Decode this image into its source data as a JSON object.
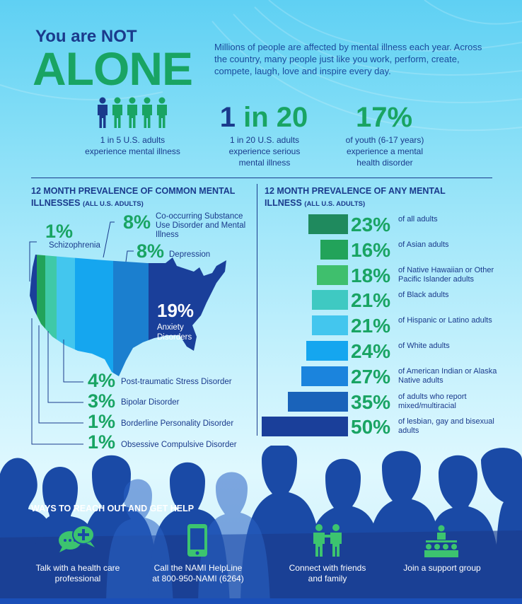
{
  "header": {
    "title_small": "You are NOT",
    "title_big": "ALONE",
    "intro": "Millions of people are affected by mental illness each year. Across the country, many people just like you work, perform, create, compete, laugh, love and inspire every day."
  },
  "stats": [
    {
      "label": "1 in 5 U.S. adults experience mental illness",
      "icon": "people-icon"
    },
    {
      "big_a": "1",
      "big_b": " in 20",
      "label": "1 in 20 U.S. adults experience serious mental illness"
    },
    {
      "big": "17%",
      "label": "of youth (6-17 years) experience a mental health disorder"
    }
  ],
  "left_section": {
    "title": "12 MONTH PREVALENCE OF COMMON MENTAL ILLNESSES",
    "subtitle": "(ALL U.S. ADULTS)",
    "conditions": [
      {
        "pct": "1%",
        "label": "Schizophrenia"
      },
      {
        "pct": "8%",
        "label": "Co-occurring Substance Use Disorder and Mental Illness"
      },
      {
        "pct": "8%",
        "label": "Depression"
      },
      {
        "pct": "19%",
        "label": "Anxiety Disorders"
      },
      {
        "pct": "4%",
        "label": "Post-traumatic Stress Disorder"
      },
      {
        "pct": "3%",
        "label": "Bipolar Disorder"
      },
      {
        "pct": "1%",
        "label": "Borderline Personality Disorder"
      },
      {
        "pct": "1%",
        "label": "Obsessive Compulsive Disorder"
      }
    ]
  },
  "right_section": {
    "title": "12 MONTH PREVALENCE OF ANY MENTAL ILLNESS",
    "subtitle": "(ALL U.S. ADULTS)",
    "rows": [
      {
        "value": 23,
        "pct": "23%",
        "label": "of all adults",
        "color": "#1f8a5e"
      },
      {
        "value": 16,
        "pct": "16%",
        "label": "of Asian adults",
        "color": "#22a35a"
      },
      {
        "value": 18,
        "pct": "18%",
        "label": "of Native Hawaiian or Other Pacific Islander adults",
        "color": "#3fbf6d"
      },
      {
        "value": 21,
        "pct": "21%",
        "label": "of Black adults",
        "color": "#3fc9c2"
      },
      {
        "value": 21,
        "pct": "21%",
        "label": "of Hispanic or Latino adults",
        "color": "#43c6ee"
      },
      {
        "value": 24,
        "pct": "24%",
        "label": "of White adults",
        "color": "#15a6ef"
      },
      {
        "value": 27,
        "pct": "27%",
        "label": "of American Indian or Alaska Native adults",
        "color": "#1b84dd"
      },
      {
        "value": 35,
        "pct": "35%",
        "label": "of adults who report mixed/multiracial",
        "color": "#1a63ba"
      },
      {
        "value": 50,
        "pct": "50%",
        "label": "of lesbian, gay and bisexual adults",
        "color": "#1a3f9a"
      }
    ]
  },
  "help": {
    "title": "WAYS TO REACH OUT AND GET HELP",
    "items": [
      {
        "icon": "chat-plus-icon",
        "label": "Talk with a health care professional"
      },
      {
        "icon": "phone-icon",
        "label": "Call the NAMI HelpLine at 800-950-NAMI (6264)"
      },
      {
        "icon": "friends-icon",
        "label": "Connect with friends and family"
      },
      {
        "icon": "support-group-icon",
        "label": "Join a support group"
      }
    ]
  },
  "colors": {
    "navy": "#1a3a8c",
    "green": "#19a463",
    "dark_blue": "#1a3f9a"
  }
}
